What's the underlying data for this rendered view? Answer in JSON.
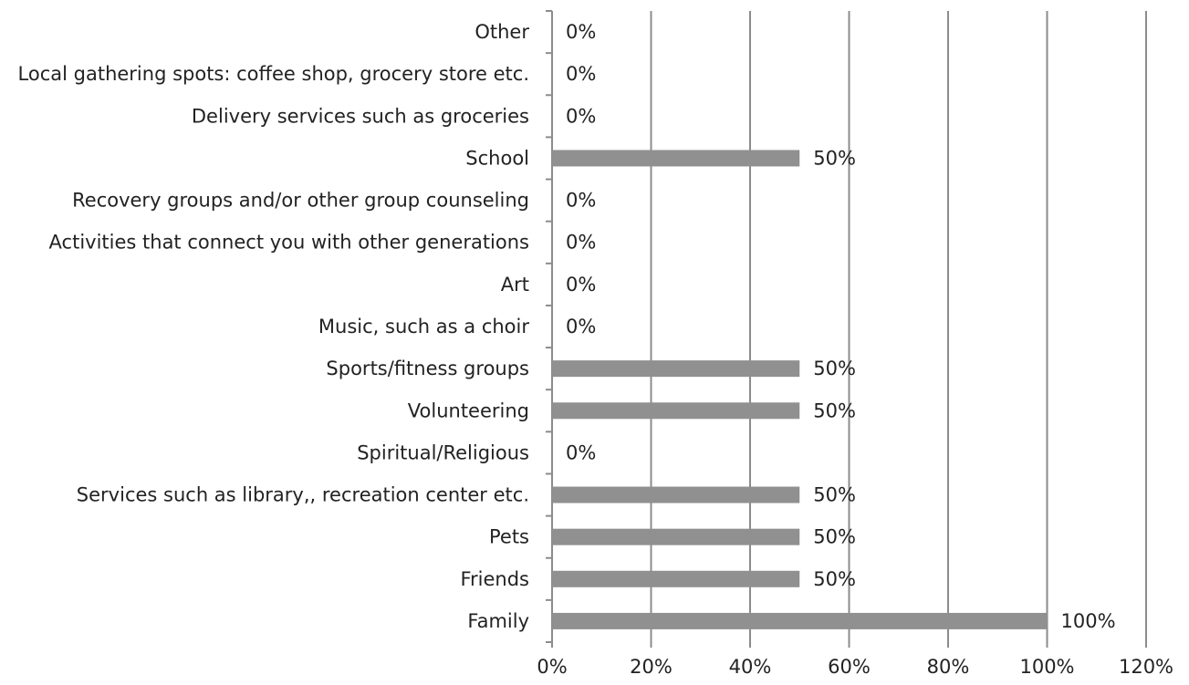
{
  "chart_data": {
    "type": "bar",
    "orientation": "horizontal",
    "categories": [
      "Other",
      "Local gathering spots: coffee shop, grocery store etc.",
      "Delivery services such as groceries",
      "School",
      "Recovery groups and/or other group counseling",
      "Activities that connect you with other generations",
      "Art",
      "Music, such as a choir",
      "Sports/fitness groups",
      "Volunteering",
      "Spiritual/Religious",
      "Services such as library,, recreation center etc.",
      "Pets",
      "Friends",
      "Family"
    ],
    "values": [
      0,
      0,
      0,
      50,
      0,
      0,
      0,
      0,
      50,
      50,
      0,
      50,
      50,
      50,
      100
    ],
    "value_labels": [
      "0%",
      "0%",
      "0%",
      "50%",
      "0%",
      "0%",
      "0%",
      "0%",
      "50%",
      "50%",
      "0%",
      "50%",
      "50%",
      "50%",
      "100%"
    ],
    "x_ticks": [
      "0%",
      "20%",
      "40%",
      "60%",
      "80%",
      "100%",
      "120%"
    ],
    "xlim": [
      0,
      120
    ],
    "grid": true,
    "legend": "none",
    "title": "",
    "xlabel": "",
    "ylabel": "",
    "bar_color": "#909090",
    "grid_color": "#8c8c8c"
  }
}
